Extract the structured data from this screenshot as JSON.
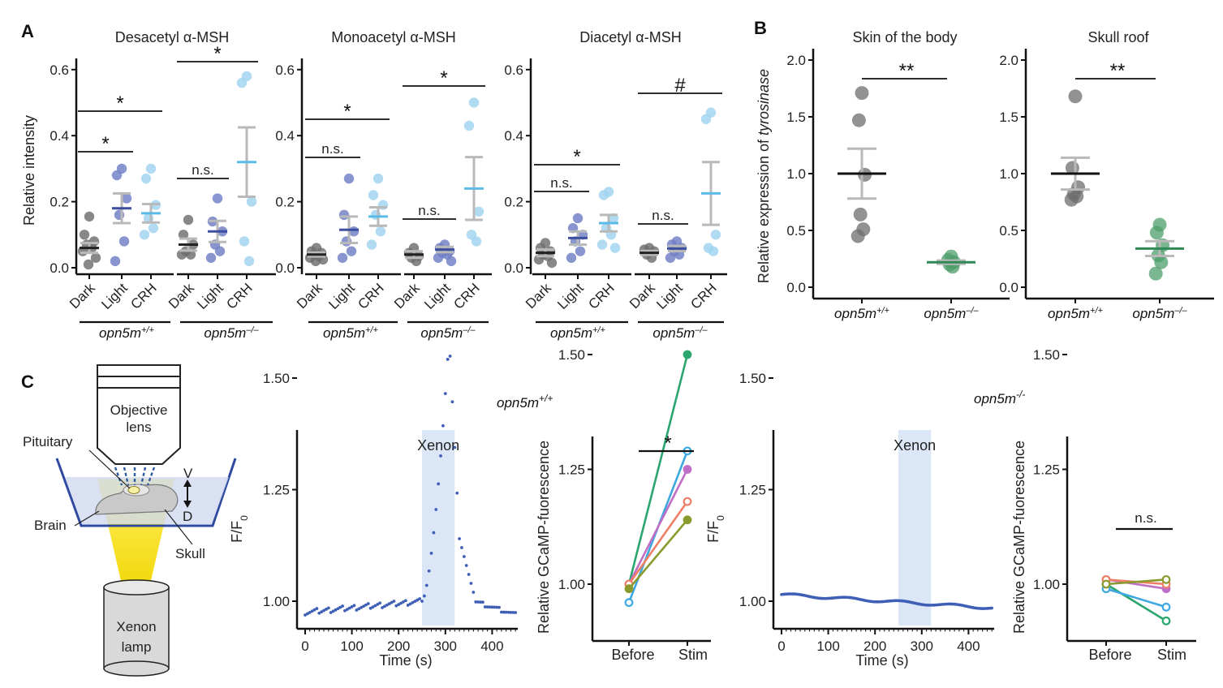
{
  "panel_labels": {
    "a": "A",
    "b": "B",
    "c": "C"
  },
  "colors": {
    "dark": "#6e6e6e",
    "light": "#6f7ec4",
    "crh": "#9fd3ef",
    "wt": "#6e6e6e",
    "ko": "#4e9d6a",
    "err": "#b9b9b9",
    "trace": "#3f5fb6",
    "stim_band": "#dbe6f6",
    "lines": [
      "#2aa66e",
      "#3ea8e0",
      "#c06fc7",
      "#ef7f66",
      "#8a9a2c"
    ]
  },
  "panel_a": {
    "ylabel": "Relative intensity",
    "y_ticks": [
      "0.0",
      "0.2",
      "0.4",
      "0.6"
    ],
    "group_labels": [
      "Dark",
      "Light",
      "CRH"
    ],
    "genotypes": [
      "opn5m",
      "+/+",
      "opn5m",
      "–/–"
    ]
  },
  "panel_b": {
    "ylabel_prefix": "Relative expression of ",
    "ylabel_gene": "tyrosinase",
    "y_ticks": [
      "0.0",
      "0.5",
      "1.0",
      "1.5",
      "2.0"
    ],
    "x_base": "opn5m",
    "x_sup": [
      "+/+",
      "–/–"
    ]
  },
  "panel_c": {
    "schematic": {
      "objective": "Objective",
      "lens": "lens",
      "pituitary": "Pituitary",
      "brain": "Brain",
      "skull": "Skull",
      "v": "V",
      "d": "D",
      "lamp1": "Xenon",
      "lamp2": "lamp"
    },
    "trace_titles": [
      [
        "opn5m",
        "+/+"
      ],
      [
        "opn5m",
        "-/-"
      ]
    ],
    "stim_label": "Xenon",
    "xlabel": "Time (s)",
    "ylabel_main": "F/F",
    "ylabel_sub": "0",
    "x_ticks": [
      "0",
      "100",
      "200",
      "300",
      "400"
    ],
    "y_ticks": [
      "1.00",
      "1.25",
      "1.50"
    ],
    "paired_ylabel": "Relative GCaMP-fuorescence",
    "paired_x": [
      "Before",
      "Stim"
    ],
    "paired_y_ticks": [
      "1.00",
      "1.25",
      "1.50"
    ]
  },
  "chart_data": [
    {
      "type": "scatter",
      "panel": "A",
      "title": "Desacetyl α-MSH",
      "ylabel": "Relative intensity",
      "ylim": [
        0,
        0.62
      ],
      "groups": [
        {
          "genotype": "opn5m+/+",
          "categories": [
            "Dark",
            "Light",
            "CRH"
          ],
          "points": [
            [
              0.155,
              0.1,
              0.08,
              0.07,
              0.06,
              0.05,
              0.03,
              0.01
            ],
            [
              0.3,
              0.28,
              0.21,
              0.16,
              0.08,
              0.02
            ],
            [
              0.3,
              0.27,
              0.19,
              0.15,
              0.12,
              0.1
            ]
          ],
          "mean": [
            0.06,
            0.18,
            0.165
          ],
          "sem": [
            0.015,
            0.045,
            0.028
          ]
        },
        {
          "genotype": "opn5m–/–",
          "categories": [
            "Dark",
            "Light",
            "CRH"
          ],
          "points": [
            [
              0.145,
              0.1,
              0.07,
              0.05,
              0.04,
              0.04
            ],
            [
              0.21,
              0.14,
              0.11,
              0.07,
              0.05,
              0.03
            ],
            [
              0.58,
              0.56,
              0.2,
              0.08,
              0.02
            ]
          ],
          "mean": [
            0.07,
            0.11,
            0.32
          ],
          "sem": [
            0.018,
            0.032,
            0.105
          ]
        }
      ],
      "comparisons": [
        {
          "group": 0,
          "from": "Dark",
          "to": "Light",
          "label": "*"
        },
        {
          "group": 0,
          "from": "Dark",
          "to": "CRH",
          "label": "*"
        },
        {
          "group": 1,
          "from": "Dark",
          "to": "Light",
          "label": "n.s."
        },
        {
          "group": 1,
          "from": "Dark",
          "to": "CRH",
          "label": "*"
        }
      ]
    },
    {
      "type": "scatter",
      "panel": "A",
      "title": "Monoacetyl α-MSH",
      "ylabel": "",
      "ylim": [
        0,
        0.62
      ],
      "groups": [
        {
          "genotype": "opn5m+/+",
          "categories": [
            "Dark",
            "Light",
            "CRH"
          ],
          "points": [
            [
              0.06,
              0.05,
              0.045,
              0.04,
              0.035,
              0.03,
              0.025,
              0.02
            ],
            [
              0.27,
              0.16,
              0.11,
              0.08,
              0.05,
              0.03
            ],
            [
              0.27,
              0.22,
              0.19,
              0.16,
              0.11,
              0.07
            ]
          ],
          "mean": [
            0.04,
            0.115,
            0.155
          ],
          "sem": [
            0.006,
            0.04,
            0.028
          ]
        },
        {
          "genotype": "opn5m–/–",
          "categories": [
            "Dark",
            "Light",
            "CRH"
          ],
          "points": [
            [
              0.06,
              0.045,
              0.035,
              0.03,
              0.02
            ],
            [
              0.07,
              0.06,
              0.05,
              0.045,
              0.04,
              0.03,
              0.02
            ],
            [
              0.5,
              0.43,
              0.17,
              0.1,
              0.08
            ]
          ],
          "mean": [
            0.04,
            0.055,
            0.24
          ],
          "sem": [
            0.01,
            0.008,
            0.095
          ]
        }
      ],
      "comparisons": [
        {
          "group": 0,
          "from": "Dark",
          "to": "Light",
          "label": "n.s."
        },
        {
          "group": 0,
          "from": "Dark",
          "to": "CRH",
          "label": "*"
        },
        {
          "group": 1,
          "from": "Dark",
          "to": "Light",
          "label": "n.s."
        },
        {
          "group": 1,
          "from": "Dark",
          "to": "CRH",
          "label": "*"
        }
      ]
    },
    {
      "type": "scatter",
      "panel": "A",
      "title": "Diacetyl α-MSH",
      "ylabel": "",
      "ylim": [
        0,
        0.62
      ],
      "groups": [
        {
          "genotype": "opn5m+/+",
          "categories": [
            "Dark",
            "Light",
            "CRH"
          ],
          "points": [
            [
              0.075,
              0.06,
              0.05,
              0.04,
              0.035,
              0.025,
              0.015
            ],
            [
              0.15,
              0.12,
              0.1,
              0.08,
              0.05,
              0.03
            ],
            [
              0.23,
              0.22,
              0.15,
              0.12,
              0.1,
              0.07,
              0.06
            ]
          ],
          "mean": [
            0.045,
            0.09,
            0.135
          ],
          "sem": [
            0.01,
            0.02,
            0.025
          ]
        },
        {
          "genotype": "opn5m–/–",
          "categories": [
            "Dark",
            "Light",
            "CRH"
          ],
          "points": [
            [
              0.06,
              0.055,
              0.05,
              0.04,
              0.03
            ],
            [
              0.08,
              0.07,
              0.06,
              0.05,
              0.04,
              0.03
            ],
            [
              0.47,
              0.45,
              0.1,
              0.06,
              0.05
            ]
          ],
          "mean": [
            0.045,
            0.058,
            0.225
          ],
          "sem": [
            0.006,
            0.008,
            0.095
          ]
        }
      ],
      "comparisons": [
        {
          "group": 0,
          "from": "Dark",
          "to": "Light",
          "label": "n.s."
        },
        {
          "group": 0,
          "from": "Dark",
          "to": "CRH",
          "label": "*"
        },
        {
          "group": 1,
          "from": "Dark",
          "to": "Light",
          "label": "n.s."
        },
        {
          "group": 1,
          "from": "Dark",
          "to": "CRH",
          "label": "#"
        }
      ]
    },
    {
      "type": "scatter",
      "panel": "B",
      "title": "Skin of the body",
      "ylabel": "Relative expression of tyrosinase",
      "ylim": [
        0,
        2.0
      ],
      "categories": [
        "opn5m+/+",
        "opn5m–/–"
      ],
      "points": [
        [
          1.71,
          1.47,
          0.99,
          0.64,
          0.51,
          0.45
        ],
        [
          0.27,
          0.24,
          0.22,
          0.2,
          0.18
        ]
      ],
      "mean": [
        1.0,
        0.22
      ],
      "sem": [
        0.22,
        0.015
      ],
      "comparison": "**"
    },
    {
      "type": "scatter",
      "panel": "B",
      "title": "Skull roof",
      "ylabel": "",
      "ylim": [
        0,
        2.0
      ],
      "categories": [
        "opn5m+/+",
        "opn5m–/–"
      ],
      "points": [
        [
          1.68,
          1.05,
          0.88,
          0.82,
          0.8,
          0.77
        ],
        [
          0.55,
          0.48,
          0.37,
          0.28,
          0.22,
          0.12
        ]
      ],
      "mean": [
        1.0,
        0.34
      ],
      "sem": [
        0.14,
        0.065
      ],
      "comparison": "**"
    },
    {
      "type": "line",
      "panel": "C",
      "title": "opn5m+/+",
      "xlabel": "Time (s)",
      "ylabel": "F/F0",
      "xlim": [
        -10,
        455
      ],
      "ylim": [
        0.9,
        1.65
      ],
      "stimulus": {
        "label": "Xenon",
        "start": 250,
        "end": 320
      },
      "peak": {
        "time": 308,
        "value": 1.59
      },
      "series": [
        {
          "values": "dots sampled every 5 s"
        }
      ]
    },
    {
      "type": "line",
      "panel": "C",
      "title": "opn5m-/-",
      "xlabel": "Time (s)",
      "ylabel": "F/F0",
      "xlim": [
        -10,
        455
      ],
      "ylim": [
        0.9,
        1.65
      ],
      "stimulus": {
        "label": "Xenon",
        "start": 250,
        "end": 320
      },
      "series": [
        {
          "values": "flat ~1.00 throughout"
        }
      ]
    },
    {
      "type": "line",
      "panel": "C",
      "title": "",
      "categories": [
        "Before",
        "Stim"
      ],
      "ylim": [
        0.9,
        1.6
      ],
      "series": [
        {
          "before": 1.0,
          "stim": 1.5,
          "filled": true
        },
        {
          "before": 0.96,
          "stim": 1.29,
          "filled": false
        },
        {
          "before": 1.0,
          "stim": 1.25,
          "filled": true
        },
        {
          "before": 1.0,
          "stim": 1.18,
          "filled": false
        },
        {
          "before": 0.99,
          "stim": 1.14,
          "filled": true
        }
      ],
      "comparison": "*"
    },
    {
      "type": "line",
      "panel": "C",
      "title": "",
      "categories": [
        "Before",
        "Stim"
      ],
      "ylim": [
        0.9,
        1.6
      ],
      "series": [
        {
          "before": 1.0,
          "stim": 0.92,
          "filled": false
        },
        {
          "before": 0.99,
          "stim": 0.95,
          "filled": false
        },
        {
          "before": 1.01,
          "stim": 0.99,
          "filled": true
        },
        {
          "before": 1.01,
          "stim": 1.0,
          "filled": false
        },
        {
          "before": 1.0,
          "stim": 1.01,
          "filled": false
        }
      ],
      "comparison": "n.s."
    }
  ]
}
